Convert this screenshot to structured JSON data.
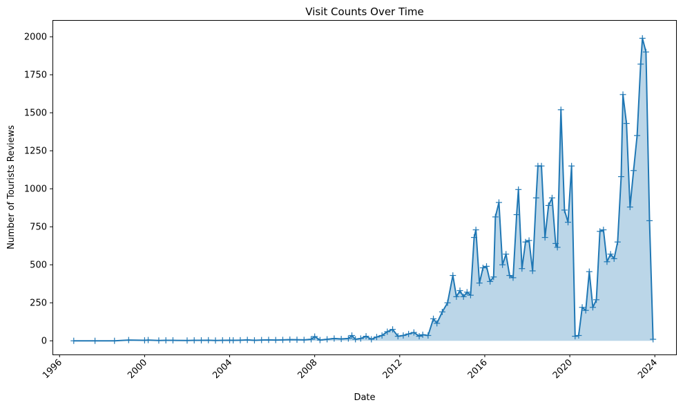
{
  "chart_data": {
    "type": "area",
    "title": "Visit Counts Over Time",
    "xlabel": "Date",
    "ylabel": "Number of Tourists Reviews",
    "x_ticks": [
      "1996",
      "2000",
      "2004",
      "2008",
      "2012",
      "2016",
      "2020",
      "2024"
    ],
    "y_ticks": [
      "0",
      "250",
      "500",
      "750",
      "1000",
      "1250",
      "1500",
      "1750",
      "2000"
    ],
    "xlim": [
      "1995-09",
      "2025-01"
    ],
    "ylim": [
      -90,
      2110
    ],
    "grid": false,
    "marker": "+",
    "colors": {
      "line": "#1f77b4",
      "fill": "#1f77b4",
      "fill_opacity": 0.3
    },
    "series": [
      {
        "x": [
          "1996-09",
          "1997-09",
          "1998-08",
          "1999-04",
          "2000-01",
          "2000-03",
          "2000-09",
          "2001-01",
          "2001-05",
          "2002-01",
          "2002-05",
          "2002-09",
          "2003-01",
          "2003-05",
          "2003-09",
          "2004-01",
          "2004-03",
          "2004-07",
          "2004-11",
          "2005-03",
          "2005-07",
          "2005-11",
          "2006-03",
          "2006-07",
          "2006-11",
          "2007-03",
          "2007-07",
          "2007-11",
          "2008-01",
          "2008-04",
          "2008-08",
          "2008-12",
          "2009-04",
          "2009-08",
          "2009-10",
          "2009-12",
          "2010-03",
          "2010-06",
          "2010-09",
          "2010-12",
          "2011-03",
          "2011-06",
          "2011-09",
          "2011-12",
          "2012-03",
          "2012-06",
          "2012-09",
          "2012-12",
          "2013-02",
          "2013-05",
          "2013-08",
          "2013-10",
          "2014-01",
          "2014-04",
          "2014-07",
          "2014-09",
          "2014-11",
          "2015-01",
          "2015-03",
          "2015-05",
          "2015-07",
          "2015-08",
          "2015-10",
          "2015-12",
          "2016-02",
          "2016-04",
          "2016-06",
          "2016-07",
          "2016-09",
          "2016-11",
          "2017-01",
          "2017-03",
          "2017-05",
          "2017-07",
          "2017-08",
          "2017-10",
          "2017-12",
          "2018-02",
          "2018-04",
          "2018-06",
          "2018-07",
          "2018-09",
          "2018-11",
          "2019-01",
          "2019-03",
          "2019-05",
          "2019-06",
          "2019-08",
          "2019-10",
          "2019-12",
          "2020-02",
          "2020-04",
          "2020-06",
          "2020-08",
          "2020-10",
          "2020-12",
          "2021-02",
          "2021-04",
          "2021-06",
          "2021-08",
          "2021-10",
          "2021-12",
          "2022-02",
          "2022-04",
          "2022-06",
          "2022-07",
          "2022-09",
          "2022-11",
          "2023-01",
          "2023-03",
          "2023-05",
          "2023-06",
          "2023-08",
          "2023-10",
          "2023-12"
        ],
        "values": [
          0,
          0,
          0,
          5,
          3,
          5,
          2,
          3,
          3,
          2,
          3,
          3,
          4,
          2,
          3,
          4,
          3,
          4,
          6,
          3,
          5,
          6,
          5,
          6,
          8,
          7,
          6,
          10,
          28,
          5,
          10,
          15,
          12,
          15,
          35,
          10,
          15,
          30,
          10,
          25,
          35,
          60,
          75,
          30,
          35,
          45,
          55,
          30,
          40,
          35,
          145,
          115,
          190,
          250,
          430,
          290,
          330,
          290,
          320,
          300,
          680,
          730,
          380,
          480,
          490,
          390,
          420,
          815,
          910,
          500,
          570,
          430,
          415,
          830,
          995,
          475,
          650,
          660,
          460,
          940,
          1150,
          1150,
          680,
          890,
          940,
          640,
          615,
          1520,
          860,
          780,
          1150,
          30,
          35,
          220,
          200,
          455,
          220,
          270,
          720,
          730,
          520,
          570,
          540,
          650,
          1080,
          1620,
          1430,
          880,
          1120,
          1350,
          1820,
          1990,
          1900,
          790,
          10
        ]
      }
    ]
  }
}
